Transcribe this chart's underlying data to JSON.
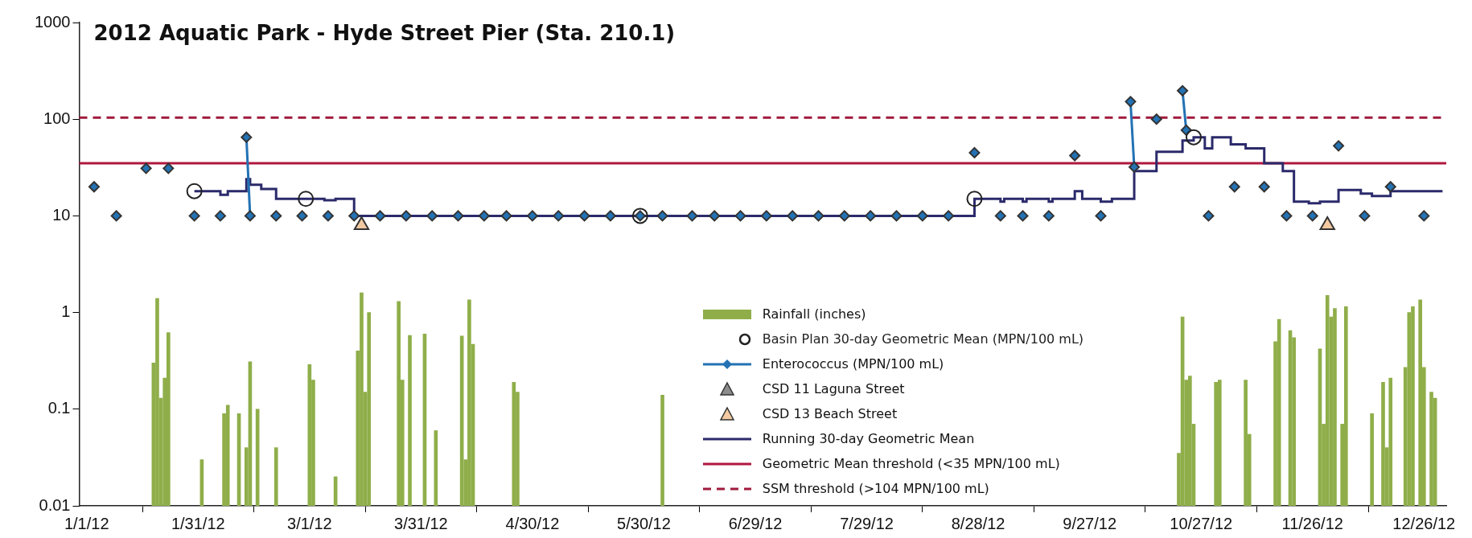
{
  "chart_data": {
    "type": "line",
    "title": "2012 Aquatic Park - Hyde Street Pier (Sta. 210.1)",
    "log": "y",
    "grid": false,
    "legend": "bottom",
    "xlim": [
      "2011-12-30",
      "2013-01-01"
    ],
    "ylim": [
      0.01,
      1000
    ],
    "yticks": [
      0.01,
      0.1,
      1,
      10,
      100,
      1000
    ],
    "xticks": [
      {
        "value": "2012-01-01",
        "label": "1/1/12"
      },
      {
        "value": "2012-01-31",
        "label": "1/31/12"
      },
      {
        "value": "2012-03-01",
        "label": "3/1/12"
      },
      {
        "value": "2012-03-31",
        "label": "3/31/12"
      },
      {
        "value": "2012-04-30",
        "label": "4/30/12"
      },
      {
        "value": "2012-05-30",
        "label": "5/30/12"
      },
      {
        "value": "2012-06-29",
        "label": "6/29/12"
      },
      {
        "value": "2012-07-29",
        "label": "7/29/12"
      },
      {
        "value": "2012-08-28",
        "label": "8/28/12"
      },
      {
        "value": "2012-09-27",
        "label": "9/27/12"
      },
      {
        "value": "2012-10-27",
        "label": "10/27/12"
      },
      {
        "value": "2012-11-26",
        "label": "11/26/12"
      },
      {
        "value": "2012-12-26",
        "label": "12/26/12"
      }
    ],
    "series": [
      {
        "name": "Rainfall (inches)",
        "type": "bar",
        "color": "#8fae4a",
        "x": [
          "2012-01-19",
          "2012-01-20",
          "2012-01-21",
          "2012-01-22",
          "2012-01-23",
          "2012-02-01",
          "2012-02-07",
          "2012-02-08",
          "2012-02-11",
          "2012-02-13",
          "2012-02-14",
          "2012-02-16",
          "2012-02-21",
          "2012-03-01",
          "2012-03-02",
          "2012-03-08",
          "2012-03-14",
          "2012-03-15",
          "2012-03-16",
          "2012-03-17",
          "2012-03-25",
          "2012-03-26",
          "2012-03-28",
          "2012-04-01",
          "2012-04-04",
          "2012-04-11",
          "2012-04-12",
          "2012-04-13",
          "2012-04-14",
          "2012-04-25",
          "2012-04-26",
          "2012-06-04",
          "2012-10-21",
          "2012-10-22",
          "2012-10-23",
          "2012-10-24",
          "2012-10-25",
          "2012-10-31",
          "2012-11-01",
          "2012-11-08",
          "2012-11-09",
          "2012-11-16",
          "2012-11-17",
          "2012-11-20",
          "2012-11-21",
          "2012-11-28",
          "2012-11-29",
          "2012-11-30",
          "2012-12-01",
          "2012-12-02",
          "2012-12-04",
          "2012-12-05",
          "2012-12-12",
          "2012-12-15",
          "2012-12-16",
          "2012-12-17",
          "2012-12-21",
          "2012-12-22",
          "2012-12-23",
          "2012-12-25",
          "2012-12-26",
          "2012-12-28",
          "2012-12-29"
        ],
        "values": [
          0.3,
          1.4,
          0.13,
          0.21,
          0.62,
          0.03,
          0.09,
          0.11,
          0.09,
          0.04,
          0.31,
          0.1,
          0.04,
          0.29,
          0.2,
          0.02,
          0.4,
          1.6,
          0.15,
          1.0,
          1.3,
          0.2,
          0.58,
          0.6,
          0.06,
          0.57,
          0.03,
          1.35,
          0.47,
          0.19,
          0.15,
          0.14,
          0.035,
          0.9,
          0.2,
          0.22,
          0.07,
          0.19,
          0.2,
          0.2,
          0.055,
          0.5,
          0.85,
          0.65,
          0.55,
          0.42,
          0.07,
          1.5,
          0.9,
          1.1,
          0.07,
          1.15,
          0.09,
          0.19,
          0.04,
          0.21,
          0.27,
          1.0,
          1.15,
          1.35,
          0.27,
          0.15,
          0.13
        ]
      },
      {
        "name": "Basin Plan 30-day Geometric Mean (MPN/100 mL)",
        "type": "scatter",
        "marker": "circle",
        "color": "#222222",
        "x": [
          "2012-01-30",
          "2012-02-29",
          "2012-05-29",
          "2012-08-27",
          "2012-10-25"
        ],
        "values": [
          18,
          15,
          10,
          15,
          65
        ]
      },
      {
        "name": "Enterococcus (MPN/100 mL)",
        "type": "scatter",
        "marker": "diamond",
        "color": "#2372b4",
        "x": [
          "2012-01-03",
          "2012-01-09",
          "2012-01-17",
          "2012-01-23",
          "2012-01-30",
          "2012-02-06",
          "2012-02-13",
          "2012-02-14",
          "2012-02-21",
          "2012-02-28",
          "2012-03-06",
          "2012-03-13",
          "2012-03-20",
          "2012-03-27",
          "2012-04-03",
          "2012-04-10",
          "2012-04-17",
          "2012-04-23",
          "2012-04-30",
          "2012-05-07",
          "2012-05-14",
          "2012-05-21",
          "2012-05-29",
          "2012-06-04",
          "2012-06-12",
          "2012-06-18",
          "2012-06-25",
          "2012-07-02",
          "2012-07-09",
          "2012-07-16",
          "2012-07-23",
          "2012-07-30",
          "2012-08-06",
          "2012-08-13",
          "2012-08-20",
          "2012-08-27",
          "2012-09-03",
          "2012-09-09",
          "2012-09-16",
          "2012-09-23",
          "2012-09-30",
          "2012-10-08",
          "2012-10-09",
          "2012-10-15",
          "2012-10-22",
          "2012-10-23",
          "2012-10-29",
          "2012-11-05",
          "2012-11-13",
          "2012-11-19",
          "2012-11-26",
          "2012-12-03",
          "2012-12-10",
          "2012-12-17",
          "2012-12-26"
        ],
        "values": [
          20,
          10,
          31,
          31,
          10,
          10,
          65,
          10,
          10,
          10,
          10,
          10,
          10,
          10,
          10,
          10,
          10,
          10,
          10,
          10,
          10,
          10,
          10,
          10,
          10,
          10,
          10,
          10,
          10,
          10,
          10,
          10,
          10,
          10,
          10,
          45,
          10,
          10,
          10,
          42,
          10,
          152,
          32,
          100,
          197,
          77,
          10,
          20,
          20,
          10,
          10,
          53,
          10,
          20,
          10
        ]
      },
      {
        "color": "#2372b4",
        "x": [
          "2012-02-13",
          "2012-02-14"
        ],
        "values": [
          65,
          10
        ]
      },
      {
        "color": "#2372b4",
        "x": [
          "2012-10-08",
          "2012-10-09"
        ],
        "values": [
          152,
          32
        ]
      },
      {
        "color": "#2372b4",
        "x": [
          "2012-10-22",
          "2012-10-23"
        ],
        "values": [
          197,
          77
        ]
      },
      {
        "name": "CSD 11 Laguna Street",
        "type": "scatter",
        "marker": "triangle",
        "color": "#8c8c8c"
      },
      {
        "name": "CSD 13 Beach Street",
        "type": "scatter",
        "marker": "triangle",
        "color": "#f2c9a1",
        "x": [
          "2012-03-15",
          "2012-11-30"
        ],
        "values": [
          8,
          8
        ]
      },
      {
        "name": "Running 30-day Geometric Mean",
        "type": "step",
        "color": "#2b2a6b",
        "x": [
          "2012-01-30",
          "2012-02-06",
          "2012-02-08",
          "2012-02-13",
          "2012-02-14",
          "2012-02-17",
          "2012-02-21",
          "2012-03-05",
          "2012-03-08",
          "2012-03-13",
          "2012-08-27",
          "2012-09-03",
          "2012-09-04",
          "2012-09-09",
          "2012-09-10",
          "2012-09-16",
          "2012-09-17",
          "2012-09-23",
          "2012-09-25",
          "2012-09-30",
          "2012-10-03",
          "2012-10-09",
          "2012-10-15",
          "2012-10-22",
          "2012-10-25",
          "2012-10-28",
          "2012-10-30",
          "2012-11-04",
          "2012-11-08",
          "2012-11-13",
          "2012-11-18",
          "2012-11-21",
          "2012-11-25",
          "2012-11-28",
          "2012-12-03",
          "2012-12-09",
          "2012-12-12",
          "2012-12-17",
          "2012-12-31"
        ],
        "values": [
          18,
          16.5,
          18,
          24,
          21,
          19,
          15,
          14.5,
          15,
          10,
          15,
          14,
          15,
          14,
          15,
          14,
          15,
          18,
          15,
          14,
          15,
          29,
          46,
          60,
          65,
          50,
          65,
          55,
          50,
          35,
          29,
          14,
          13.5,
          14,
          18.5,
          17,
          16,
          18,
          18
        ]
      }
    ],
    "ref_lines": [
      {
        "axis": "y",
        "value": 35,
        "label": "Geometric Mean threshold (<35 MPN/100 mL)",
        "color": "#b0173f",
        "line_style": "solid"
      },
      {
        "axis": "y",
        "value": 104,
        "label": "SSM threshold (>104 MPN/100 mL)",
        "color": "#a01a3c",
        "line_style": "dashed"
      }
    ]
  }
}
